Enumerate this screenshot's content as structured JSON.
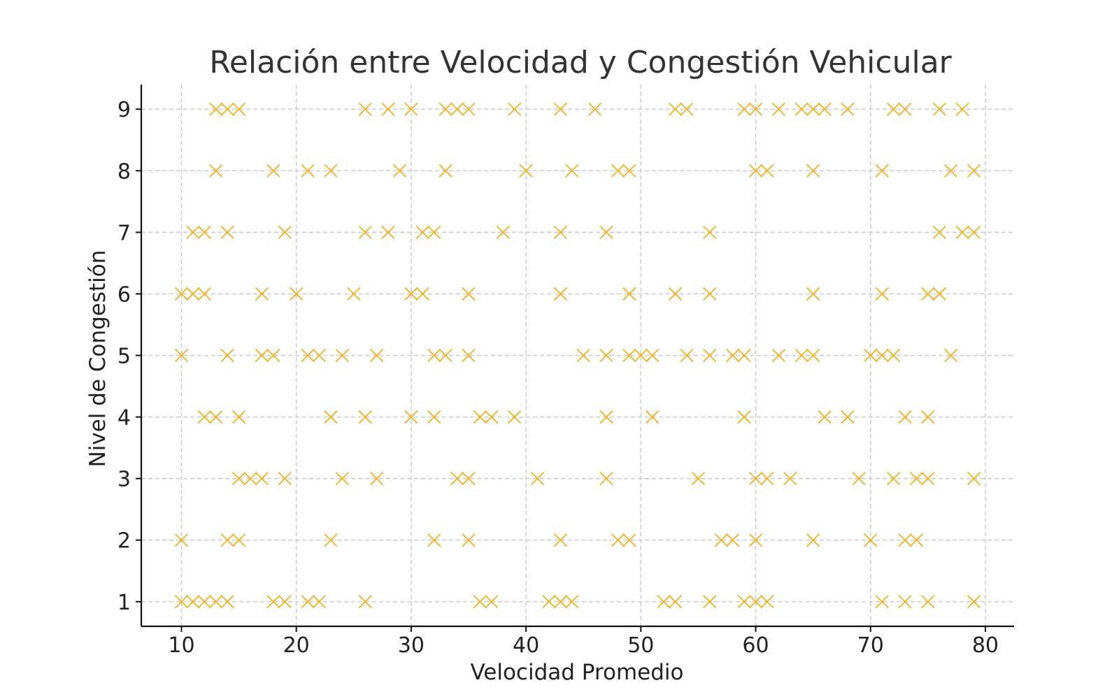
{
  "chart_data": {
    "type": "scatter",
    "title": "Relación entre Velocidad y Congestión Vehicular",
    "xlabel": "Velocidad Promedio",
    "ylabel": "Nivel de Congestión",
    "xlim": [
      6.5,
      82.5
    ],
    "ylim": [
      0.6,
      9.4
    ],
    "xticks": [
      10,
      20,
      30,
      40,
      50,
      60,
      70,
      80
    ],
    "yticks": [
      1,
      2,
      3,
      4,
      5,
      6,
      7,
      8,
      9
    ],
    "grid": true,
    "marker": "x",
    "color": "#f5b21b",
    "series": [
      {
        "points": [
          [
            13,
            9
          ],
          [
            14,
            9
          ],
          [
            15,
            9
          ],
          [
            26,
            9
          ],
          [
            28,
            9
          ],
          [
            30,
            9
          ],
          [
            33,
            9
          ],
          [
            34,
            9
          ],
          [
            35,
            9
          ],
          [
            39,
            9
          ],
          [
            43,
            9
          ],
          [
            46,
            9
          ],
          [
            53,
            9
          ],
          [
            54,
            9
          ],
          [
            59,
            9
          ],
          [
            60,
            9
          ],
          [
            62,
            9
          ],
          [
            64,
            9
          ],
          [
            65,
            9
          ],
          [
            66,
            9
          ],
          [
            68,
            9
          ],
          [
            72,
            9
          ],
          [
            73,
            9
          ],
          [
            76,
            9
          ],
          [
            78,
            9
          ],
          [
            13,
            8
          ],
          [
            18,
            8
          ],
          [
            21,
            8
          ],
          [
            23,
            8
          ],
          [
            29,
            8
          ],
          [
            33,
            8
          ],
          [
            40,
            8
          ],
          [
            44,
            8
          ],
          [
            48,
            8
          ],
          [
            49,
            8
          ],
          [
            60,
            8
          ],
          [
            61,
            8
          ],
          [
            65,
            8
          ],
          [
            71,
            8
          ],
          [
            77,
            8
          ],
          [
            79,
            8
          ],
          [
            11,
            7
          ],
          [
            12,
            7
          ],
          [
            14,
            7
          ],
          [
            19,
            7
          ],
          [
            26,
            7
          ],
          [
            28,
            7
          ],
          [
            31,
            7
          ],
          [
            32,
            7
          ],
          [
            38,
            7
          ],
          [
            43,
            7
          ],
          [
            47,
            7
          ],
          [
            56,
            7
          ],
          [
            76,
            7
          ],
          [
            78,
            7
          ],
          [
            79,
            7
          ],
          [
            10,
            6
          ],
          [
            11,
            6
          ],
          [
            12,
            6
          ],
          [
            17,
            6
          ],
          [
            20,
            6
          ],
          [
            25,
            6
          ],
          [
            30,
            6
          ],
          [
            31,
            6
          ],
          [
            35,
            6
          ],
          [
            43,
            6
          ],
          [
            49,
            6
          ],
          [
            53,
            6
          ],
          [
            56,
            6
          ],
          [
            65,
            6
          ],
          [
            71,
            6
          ],
          [
            75,
            6
          ],
          [
            76,
            6
          ],
          [
            10,
            5
          ],
          [
            14,
            5
          ],
          [
            17,
            5
          ],
          [
            18,
            5
          ],
          [
            21,
            5
          ],
          [
            22,
            5
          ],
          [
            24,
            5
          ],
          [
            27,
            5
          ],
          [
            32,
            5
          ],
          [
            33,
            5
          ],
          [
            35,
            5
          ],
          [
            45,
            5
          ],
          [
            47,
            5
          ],
          [
            49,
            5
          ],
          [
            50,
            5
          ],
          [
            51,
            5
          ],
          [
            54,
            5
          ],
          [
            56,
            5
          ],
          [
            58,
            5
          ],
          [
            59,
            5
          ],
          [
            62,
            5
          ],
          [
            64,
            5
          ],
          [
            65,
            5
          ],
          [
            70,
            5
          ],
          [
            71,
            5
          ],
          [
            72,
            5
          ],
          [
            77,
            5
          ],
          [
            12,
            4
          ],
          [
            13,
            4
          ],
          [
            15,
            4
          ],
          [
            23,
            4
          ],
          [
            26,
            4
          ],
          [
            30,
            4
          ],
          [
            32,
            4
          ],
          [
            36,
            4
          ],
          [
            37,
            4
          ],
          [
            39,
            4
          ],
          [
            47,
            4
          ],
          [
            51,
            4
          ],
          [
            59,
            4
          ],
          [
            66,
            4
          ],
          [
            68,
            4
          ],
          [
            73,
            4
          ],
          [
            75,
            4
          ],
          [
            15,
            3
          ],
          [
            16,
            3
          ],
          [
            17,
            3
          ],
          [
            19,
            3
          ],
          [
            24,
            3
          ],
          [
            27,
            3
          ],
          [
            34,
            3
          ],
          [
            35,
            3
          ],
          [
            41,
            3
          ],
          [
            47,
            3
          ],
          [
            55,
            3
          ],
          [
            60,
            3
          ],
          [
            61,
            3
          ],
          [
            63,
            3
          ],
          [
            69,
            3
          ],
          [
            72,
            3
          ],
          [
            74,
            3
          ],
          [
            75,
            3
          ],
          [
            79,
            3
          ],
          [
            10,
            2
          ],
          [
            14,
            2
          ],
          [
            15,
            2
          ],
          [
            23,
            2
          ],
          [
            32,
            2
          ],
          [
            35,
            2
          ],
          [
            43,
            2
          ],
          [
            48,
            2
          ],
          [
            49,
            2
          ],
          [
            57,
            2
          ],
          [
            58,
            2
          ],
          [
            60,
            2
          ],
          [
            65,
            2
          ],
          [
            70,
            2
          ],
          [
            73,
            2
          ],
          [
            74,
            2
          ],
          [
            10,
            1
          ],
          [
            11,
            1
          ],
          [
            12,
            1
          ],
          [
            13,
            1
          ],
          [
            14,
            1
          ],
          [
            18,
            1
          ],
          [
            19,
            1
          ],
          [
            21,
            1
          ],
          [
            22,
            1
          ],
          [
            26,
            1
          ],
          [
            36,
            1
          ],
          [
            37,
            1
          ],
          [
            42,
            1
          ],
          [
            43,
            1
          ],
          [
            44,
            1
          ],
          [
            52,
            1
          ],
          [
            53,
            1
          ],
          [
            56,
            1
          ],
          [
            59,
            1
          ],
          [
            60,
            1
          ],
          [
            61,
            1
          ],
          [
            71,
            1
          ],
          [
            73,
            1
          ],
          [
            75,
            1
          ],
          [
            79,
            1
          ]
        ]
      }
    ]
  }
}
